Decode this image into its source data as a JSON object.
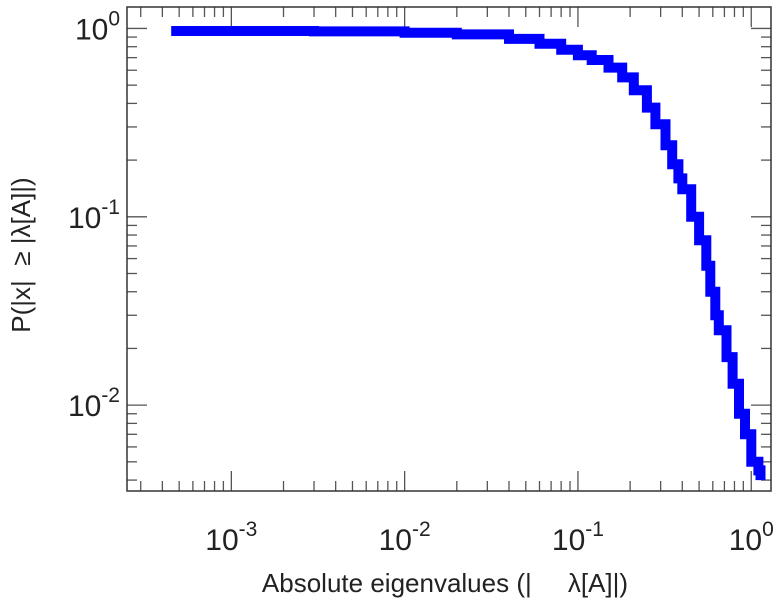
{
  "chart_data": {
    "type": "line",
    "title": "",
    "xlabel": "Absolute eigenvalues (|     λ[A]|)",
    "ylabel": "P(|x|  ≥ |λ[A]|)",
    "x_scale": "log",
    "y_scale": "log",
    "xlim": [
      0.00025,
      1.3
    ],
    "ylim": [
      0.0035,
      1.3
    ],
    "grid": false,
    "x_ticks": [
      {
        "base": "10",
        "exp": "-3",
        "value": 0.001
      },
      {
        "base": "10",
        "exp": "-2",
        "value": 0.01
      },
      {
        "base": "10",
        "exp": "-1",
        "value": 0.1
      },
      {
        "base": "10",
        "exp": "0",
        "value": 1
      }
    ],
    "y_ticks": [
      {
        "base": "10",
        "exp": "0",
        "value": 1
      },
      {
        "base": "10",
        "exp": "-1",
        "value": 0.1
      },
      {
        "base": "10",
        "exp": "-2",
        "value": 0.01
      }
    ],
    "series": [
      {
        "color": "#0000ff",
        "x": [
          0.00045,
          0.001,
          0.003,
          0.01,
          0.02,
          0.04,
          0.06,
          0.08,
          0.1,
          0.12,
          0.15,
          0.18,
          0.21,
          0.25,
          0.28,
          0.32,
          0.35,
          0.38,
          0.4,
          0.45,
          0.5,
          0.55,
          0.58,
          0.62,
          0.65,
          0.72,
          0.78,
          0.85,
          0.92,
          1.0,
          1.1,
          1.13
        ],
        "y": [
          0.97,
          0.97,
          0.965,
          0.95,
          0.93,
          0.88,
          0.83,
          0.77,
          0.72,
          0.68,
          0.62,
          0.55,
          0.47,
          0.38,
          0.31,
          0.24,
          0.19,
          0.16,
          0.14,
          0.1,
          0.075,
          0.055,
          0.04,
          0.03,
          0.025,
          0.018,
          0.013,
          0.009,
          0.007,
          0.005,
          0.0045,
          0.004
        ]
      }
    ]
  }
}
